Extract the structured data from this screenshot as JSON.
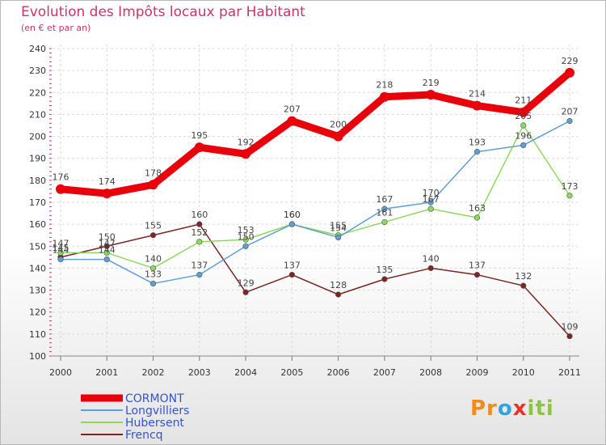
{
  "chart_data": {
    "type": "line",
    "title": "Evolution des Impôts locaux par Habitant",
    "subtitle": "(en € et par an)",
    "xlabel": "",
    "ylabel": "",
    "ylim": [
      100,
      240
    ],
    "yticks": [
      100,
      110,
      120,
      130,
      140,
      150,
      160,
      170,
      180,
      190,
      200,
      210,
      220,
      230,
      240
    ],
    "categories": [
      "2000",
      "2001",
      "2002",
      "2003",
      "2004",
      "2005",
      "2006",
      "2007",
      "2008",
      "2009",
      "2010",
      "2011"
    ],
    "grid": true,
    "legend_position": "bottom-left",
    "series": [
      {
        "name": "CORMONT",
        "color": "#e8000b",
        "values": [
          176,
          174,
          178,
          195,
          192,
          207,
          200,
          218,
          219,
          214,
          211,
          229
        ]
      },
      {
        "name": "Longvilliers",
        "color": "#5f9fd3",
        "values": [
          144,
          144,
          133,
          137,
          150,
          160,
          154,
          167,
          170,
          193,
          196,
          207
        ]
      },
      {
        "name": "Hubersent",
        "color": "#8fd860",
        "values": [
          147,
          147,
          140,
          152,
          153,
          160,
          155,
          161,
          167,
          163,
          205,
          173
        ]
      },
      {
        "name": "Frencq",
        "color": "#7b2525",
        "values": [
          145,
          150,
          155,
          160,
          129,
          137,
          128,
          135,
          140,
          137,
          132,
          109
        ]
      }
    ]
  },
  "logo": {
    "letters": [
      "Pr",
      "o",
      "x",
      "iti"
    ]
  }
}
